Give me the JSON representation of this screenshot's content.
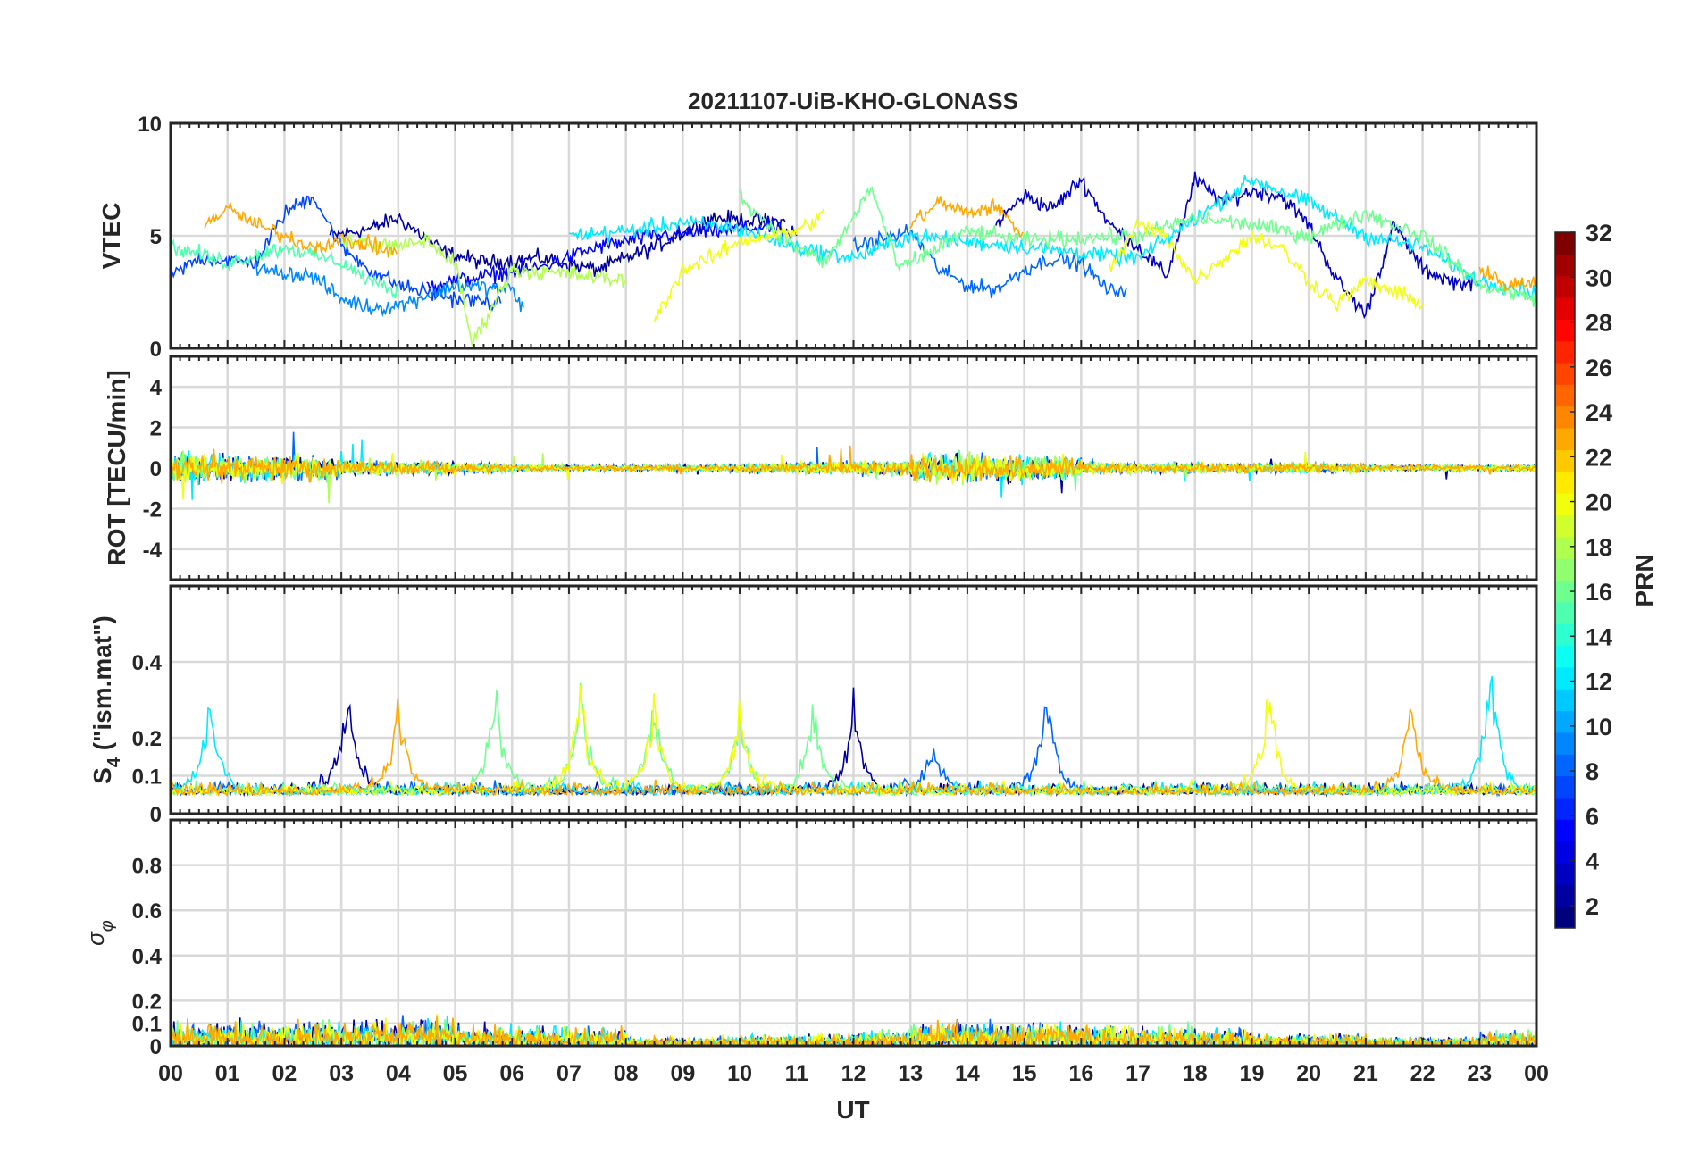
{
  "chart_data": {
    "type": "line",
    "title": "20211107-UiB-KHO-GLONASS",
    "xlabel": "UT",
    "xlim": [
      0,
      24
    ],
    "x_tick_labels": [
      "00",
      "01",
      "02",
      "03",
      "04",
      "05",
      "06",
      "07",
      "08",
      "09",
      "10",
      "11",
      "12",
      "13",
      "14",
      "15",
      "16",
      "17",
      "18",
      "19",
      "20",
      "21",
      "22",
      "23",
      "00"
    ],
    "grid": true,
    "colorbar": {
      "label": "PRN",
      "range": [
        1,
        32
      ],
      "colormap": "jet",
      "ticks": [
        "2",
        "4",
        "6",
        "8",
        "10",
        "12",
        "14",
        "16",
        "18",
        "20",
        "22",
        "24",
        "26",
        "28",
        "30",
        "32"
      ]
    },
    "panels": [
      {
        "id": "vtec",
        "ylabel": "VTEC",
        "ylim": [
          0,
          10
        ],
        "y_ticks": [
          0,
          5,
          10
        ],
        "y_tick_labels": [
          "0",
          "5",
          "10"
        ],
        "noise": 0.25,
        "series": [
          {
            "prn": 2,
            "points": [
              [
                2.8,
                5.0
              ],
              [
                3.5,
                5.3
              ],
              [
                4.0,
                5.8
              ],
              [
                4.8,
                4.3
              ],
              [
                5.5,
                3.8
              ],
              [
                6.5,
                4.0
              ],
              [
                7.5,
                3.5
              ],
              [
                8.5,
                4.5
              ],
              [
                9.5,
                5.8
              ],
              [
                10.8,
                5.6
              ]
            ]
          },
          {
            "prn": 3,
            "points": [
              [
                14.5,
                5.5
              ],
              [
                15.0,
                6.8
              ],
              [
                15.5,
                6.2
              ],
              [
                16.0,
                7.5
              ],
              [
                16.5,
                5.5
              ],
              [
                17.0,
                4.5
              ],
              [
                17.5,
                3.2
              ],
              [
                18.0,
                7.5
              ],
              [
                18.5,
                6.5
              ],
              [
                19.0,
                7.0
              ],
              [
                19.5,
                6.8
              ],
              [
                20.0,
                5.5
              ],
              [
                20.5,
                3.0
              ],
              [
                21.0,
                1.5
              ],
              [
                21.5,
                5.5
              ],
              [
                22.0,
                3.5
              ],
              [
                22.5,
                3.0
              ],
              [
                23.0,
                2.8
              ]
            ]
          },
          {
            "prn": 5,
            "points": [
              [
                4.5,
                2.8
              ],
              [
                5.5,
                3.2
              ],
              [
                6.5,
                3.6
              ],
              [
                7.5,
                4.5
              ],
              [
                8.5,
                5.0
              ],
              [
                9.5,
                5.2
              ],
              [
                10.5,
                5.4
              ],
              [
                11.0,
                5.0
              ]
            ]
          },
          {
            "prn": 7,
            "points": [
              [
                0.0,
                3.2
              ],
              [
                0.5,
                4.0
              ],
              [
                1.5,
                3.8
              ],
              [
                2.0,
                6.0
              ],
              [
                2.5,
                6.8
              ],
              [
                3.0,
                4.5
              ],
              [
                3.5,
                3.5
              ],
              [
                4.0,
                2.8
              ],
              [
                5.0,
                2.2
              ],
              [
                5.8,
                2.0
              ]
            ]
          },
          {
            "prn": 8,
            "points": [
              [
                12.0,
                4.5
              ],
              [
                13.0,
                5.2
              ],
              [
                13.5,
                3.5
              ],
              [
                14.0,
                2.8
              ],
              [
                14.5,
                2.6
              ],
              [
                15.0,
                3.5
              ],
              [
                15.5,
                4.0
              ],
              [
                16.0,
                3.8
              ],
              [
                16.5,
                2.5
              ],
              [
                16.8,
                2.7
              ]
            ]
          },
          {
            "prn": 9,
            "points": [
              [
                1.5,
                3.5
              ],
              [
                2.5,
                3.2
              ],
              [
                3.0,
                2.2
              ],
              [
                3.5,
                1.8
              ],
              [
                4.0,
                1.9
              ],
              [
                5.0,
                2.8
              ],
              [
                6.0,
                2.6
              ],
              [
                6.2,
                1.8
              ]
            ]
          },
          {
            "prn": 12,
            "points": [
              [
                7.0,
                5.0
              ],
              [
                8.0,
                5.2
              ],
              [
                9.0,
                5.6
              ],
              [
                10.0,
                5.3
              ],
              [
                11.0,
                4.5
              ],
              [
                12.0,
                4.0
              ],
              [
                13.0,
                5.0
              ],
              [
                15.0,
                4.5
              ],
              [
                17.0,
                4.0
              ],
              [
                19.0,
                7.5
              ],
              [
                20.0,
                6.5
              ],
              [
                21.0,
                5.0
              ],
              [
                22.0,
                4.5
              ],
              [
                23.0,
                3.0
              ],
              [
                24.0,
                2.5
              ]
            ]
          },
          {
            "prn": 15,
            "points": [
              [
                0.0,
                4.5
              ],
              [
                0.5,
                4.2
              ],
              [
                1.0,
                3.8
              ],
              [
                2.0,
                4.5
              ],
              [
                3.0,
                3.8
              ],
              [
                3.5,
                3.0
              ],
              [
                4.0,
                2.5
              ]
            ]
          },
          {
            "prn": 16,
            "points": [
              [
                10.0,
                6.8
              ],
              [
                10.5,
                5.5
              ],
              [
                11.0,
                4.5
              ],
              [
                11.5,
                3.8
              ],
              [
                12.0,
                5.8
              ],
              [
                12.3,
                7.2
              ],
              [
                12.8,
                3.5
              ],
              [
                13.5,
                4.5
              ],
              [
                14.0,
                5.2
              ],
              [
                15.0,
                4.8
              ],
              [
                17.0,
                5.0
              ],
              [
                18.0,
                5.8
              ],
              [
                19.0,
                5.5
              ],
              [
                20.0,
                5.0
              ],
              [
                21.0,
                6.0
              ],
              [
                22.0,
                5.0
              ],
              [
                23.0,
                2.8
              ],
              [
                24.0,
                2.2
              ]
            ]
          },
          {
            "prn": 18,
            "points": [
              [
                3.0,
                4.8
              ],
              [
                4.0,
                4.5
              ],
              [
                4.5,
                4.8
              ],
              [
                5.0,
                3.8
              ],
              [
                5.3,
                0.2
              ],
              [
                6.0,
                3.5
              ],
              [
                7.0,
                3.3
              ],
              [
                8.0,
                3.0
              ]
            ]
          },
          {
            "prn": 20,
            "points": [
              [
                8.5,
                1.2
              ],
              [
                9.0,
                3.5
              ],
              [
                9.5,
                4.0
              ],
              [
                10.0,
                4.8
              ],
              [
                11.0,
                5.2
              ],
              [
                11.5,
                6.0
              ],
              [
                16.5,
                3.5
              ],
              [
                17.0,
                5.5
              ],
              [
                17.5,
                5.0
              ],
              [
                18.0,
                3.0
              ],
              [
                19.0,
                5.0
              ],
              [
                19.5,
                4.5
              ],
              [
                20.0,
                3.0
              ],
              [
                20.5,
                2.0
              ],
              [
                21.0,
                3.0
              ],
              [
                22.0,
                2.0
              ]
            ]
          },
          {
            "prn": 23,
            "points": [
              [
                0.6,
                5.5
              ],
              [
                1.0,
                6.2
              ],
              [
                1.5,
                5.5
              ],
              [
                2.0,
                5.0
              ],
              [
                2.5,
                4.5
              ],
              [
                3.0,
                4.8
              ],
              [
                3.5,
                4.6
              ],
              [
                4.0,
                4.2
              ],
              [
                13.0,
                5.5
              ],
              [
                13.5,
                6.5
              ],
              [
                14.0,
                6.0
              ],
              [
                14.5,
                6.3
              ],
              [
                15.0,
                5.0
              ],
              [
                23.0,
                3.5
              ],
              [
                23.5,
                2.8
              ],
              [
                24.0,
                3.0
              ]
            ]
          }
        ]
      },
      {
        "id": "rot",
        "ylabel": "ROT [TECU/min]",
        "ylim": [
          -5.5,
          5.5
        ],
        "y_ticks": [
          -4,
          -2,
          0,
          2,
          4
        ],
        "y_tick_labels": [
          "-4",
          "-2",
          "0",
          "2",
          "4"
        ],
        "activity_by_hour": [
          1.0,
          0.9,
          0.8,
          0.5,
          0.4,
          0.3,
          0.2,
          0.2,
          0.2,
          0.2,
          0.3,
          0.4,
          0.5,
          0.9,
          0.9,
          0.8,
          0.4,
          0.3,
          0.3,
          0.3,
          0.3,
          0.2,
          0.2,
          0.2
        ],
        "series_prns": [
          2,
          8,
          12,
          16,
          18,
          20,
          23
        ]
      },
      {
        "id": "s4",
        "ylabel": "S4 (\"ism.mat\")",
        "ylabel_main": "S",
        "ylabel_sub": "4",
        "ylabel_rest": " (\"ism.mat\")",
        "ylim": [
          0,
          0.6
        ],
        "y_ticks": [
          0,
          0.1,
          0.2,
          0.4
        ],
        "y_tick_labels": [
          "0",
          "0.1",
          "0.2",
          "0.4"
        ],
        "peaks": [
          [
            0.7,
            0.33,
            12
          ],
          [
            3.1,
            0.36,
            2
          ],
          [
            4.0,
            0.32,
            23
          ],
          [
            5.7,
            0.35,
            16
          ],
          [
            7.2,
            0.35,
            18
          ],
          [
            8.5,
            0.33,
            18
          ],
          [
            10.0,
            0.31,
            18
          ],
          [
            12.0,
            0.32,
            2
          ],
          [
            13.4,
            0.2,
            8
          ],
          [
            15.4,
            0.35,
            8
          ],
          [
            19.3,
            0.35,
            20
          ],
          [
            21.8,
            0.32,
            23
          ],
          [
            23.2,
            0.41,
            12
          ],
          [
            11.3,
            0.3,
            16
          ]
        ],
        "baseline": 0.05
      },
      {
        "id": "sigma_phi",
        "ylabel": "σφ",
        "ylabel_main": "σ",
        "ylabel_sub": "φ",
        "ylim": [
          0,
          1
        ],
        "y_ticks": [
          0,
          0.1,
          0.2,
          0.4,
          0.6,
          0.8
        ],
        "y_tick_labels": [
          "0",
          "0.1",
          "0.2",
          "0.4",
          "0.6",
          "0.8"
        ],
        "level_by_hour": [
          0.08,
          0.08,
          0.08,
          0.09,
          0.1,
          0.07,
          0.07,
          0.06,
          0.03,
          0.03,
          0.04,
          0.04,
          0.05,
          0.08,
          0.08,
          0.08,
          0.07,
          0.07,
          0.06,
          0.04,
          0.04,
          0.03,
          0.03,
          0.05
        ],
        "series_prns": [
          2,
          8,
          12,
          16,
          20,
          23
        ]
      }
    ]
  }
}
